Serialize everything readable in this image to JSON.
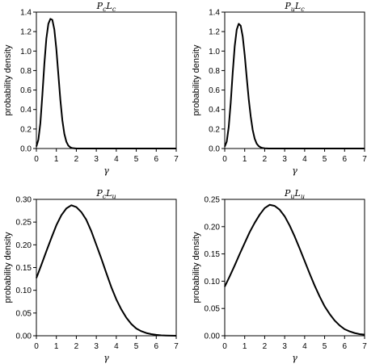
{
  "chart_data": [
    {
      "type": "line",
      "title": {
        "main1": "P",
        "sub1": "c",
        "main2": "L",
        "sub2": "c"
      },
      "xlabel": "γ",
      "ylabel": "probability density",
      "xlim": [
        0,
        7
      ],
      "ylim": [
        0,
        1.4
      ],
      "xticks": [
        "0",
        "1",
        "2",
        "3",
        "4",
        "5",
        "6",
        "7"
      ],
      "yticks": [
        "0.0",
        "0.2",
        "0.4",
        "0.6",
        "0.8",
        "1.0",
        "1.2",
        "1.4"
      ],
      "grid": false,
      "series": [
        {
          "x": [
            0,
            0.1,
            0.2,
            0.3,
            0.4,
            0.5,
            0.6,
            0.7,
            0.8,
            0.9,
            1.0,
            1.1,
            1.2,
            1.3,
            1.4,
            1.5,
            1.6,
            1.7,
            1.8,
            2.0,
            2.5,
            3,
            4,
            5,
            6,
            7
          ],
          "y": [
            0.02,
            0.09,
            0.26,
            0.55,
            0.87,
            1.13,
            1.28,
            1.33,
            1.32,
            1.22,
            1.02,
            0.76,
            0.5,
            0.29,
            0.15,
            0.07,
            0.03,
            0.012,
            0.004,
            0,
            0,
            0,
            0,
            0,
            0,
            0
          ]
        }
      ]
    },
    {
      "type": "line",
      "title": {
        "main1": "P",
        "sub1": "u",
        "main2": "L",
        "sub2": "c"
      },
      "xlabel": "γ",
      "ylabel": "probability density",
      "xlim": [
        0,
        7
      ],
      "ylim": [
        0,
        1.4
      ],
      "xticks": [
        "0",
        "1",
        "2",
        "3",
        "4",
        "5",
        "6",
        "7"
      ],
      "yticks": [
        "0.0",
        "0.2",
        "0.4",
        "0.6",
        "0.8",
        "1.0",
        "1.2",
        "1.4"
      ],
      "grid": false,
      "series": [
        {
          "x": [
            0,
            0.1,
            0.2,
            0.3,
            0.4,
            0.5,
            0.6,
            0.7,
            0.8,
            0.9,
            1.0,
            1.1,
            1.2,
            1.3,
            1.4,
            1.5,
            1.6,
            1.7,
            1.8,
            1.9,
            2.0,
            2.2,
            2.5,
            3,
            4,
            5,
            6,
            7
          ],
          "y": [
            0.02,
            0.07,
            0.22,
            0.47,
            0.78,
            1.05,
            1.22,
            1.28,
            1.26,
            1.15,
            0.96,
            0.73,
            0.51,
            0.33,
            0.19,
            0.1,
            0.05,
            0.025,
            0.012,
            0.005,
            0.002,
            0,
            0,
            0,
            0,
            0,
            0,
            0
          ]
        }
      ]
    },
    {
      "type": "line",
      "title": {
        "main1": "P",
        "sub1": "c",
        "main2": "L",
        "sub2": "u"
      },
      "xlabel": "γ",
      "ylabel": "probability density",
      "xlim": [
        0,
        7
      ],
      "ylim": [
        0,
        0.3
      ],
      "xticks": [
        "0",
        "1",
        "2",
        "3",
        "4",
        "5",
        "6",
        "7"
      ],
      "yticks": [
        "0.00",
        "0.05",
        "0.10",
        "0.15",
        "0.20",
        "0.25",
        "0.30"
      ],
      "grid": false,
      "series": [
        {
          "x": [
            0,
            0.25,
            0.5,
            0.75,
            1.0,
            1.25,
            1.5,
            1.75,
            2.0,
            2.25,
            2.5,
            2.75,
            3.0,
            3.25,
            3.5,
            3.75,
            4.0,
            4.25,
            4.5,
            4.75,
            5.0,
            5.25,
            5.5,
            5.75,
            6.0,
            6.25,
            6.5,
            6.75,
            7.0
          ],
          "y": [
            0.127,
            0.156,
            0.186,
            0.215,
            0.243,
            0.265,
            0.28,
            0.287,
            0.283,
            0.272,
            0.255,
            0.23,
            0.2,
            0.17,
            0.138,
            0.107,
            0.08,
            0.058,
            0.04,
            0.026,
            0.016,
            0.01,
            0.006,
            0.0035,
            0.002,
            0.001,
            0.0005,
            0.0002,
            0.0001
          ]
        }
      ]
    },
    {
      "type": "line",
      "title": {
        "main1": "P",
        "sub1": "u",
        "main2": "L",
        "sub2": "u"
      },
      "xlabel": "γ",
      "ylabel": "probability density",
      "xlim": [
        0,
        7
      ],
      "ylim": [
        0,
        0.25
      ],
      "xticks": [
        "0",
        "1",
        "2",
        "3",
        "4",
        "5",
        "6",
        "7"
      ],
      "yticks": [
        "0.00",
        "0.05",
        "0.10",
        "0.15",
        "0.20",
        "0.25"
      ],
      "grid": false,
      "series": [
        {
          "x": [
            0,
            0.25,
            0.5,
            0.75,
            1.0,
            1.25,
            1.5,
            1.75,
            2.0,
            2.25,
            2.5,
            2.75,
            3.0,
            3.25,
            3.5,
            3.75,
            4.0,
            4.25,
            4.5,
            4.75,
            5.0,
            5.25,
            5.5,
            5.75,
            6.0,
            6.25,
            6.5,
            6.75,
            7.0
          ],
          "y": [
            0.09,
            0.109,
            0.129,
            0.15,
            0.17,
            0.19,
            0.207,
            0.222,
            0.234,
            0.24,
            0.238,
            0.231,
            0.219,
            0.202,
            0.182,
            0.16,
            0.137,
            0.114,
            0.092,
            0.072,
            0.054,
            0.04,
            0.028,
            0.019,
            0.012,
            0.008,
            0.005,
            0.003,
            0.002
          ]
        }
      ]
    }
  ]
}
